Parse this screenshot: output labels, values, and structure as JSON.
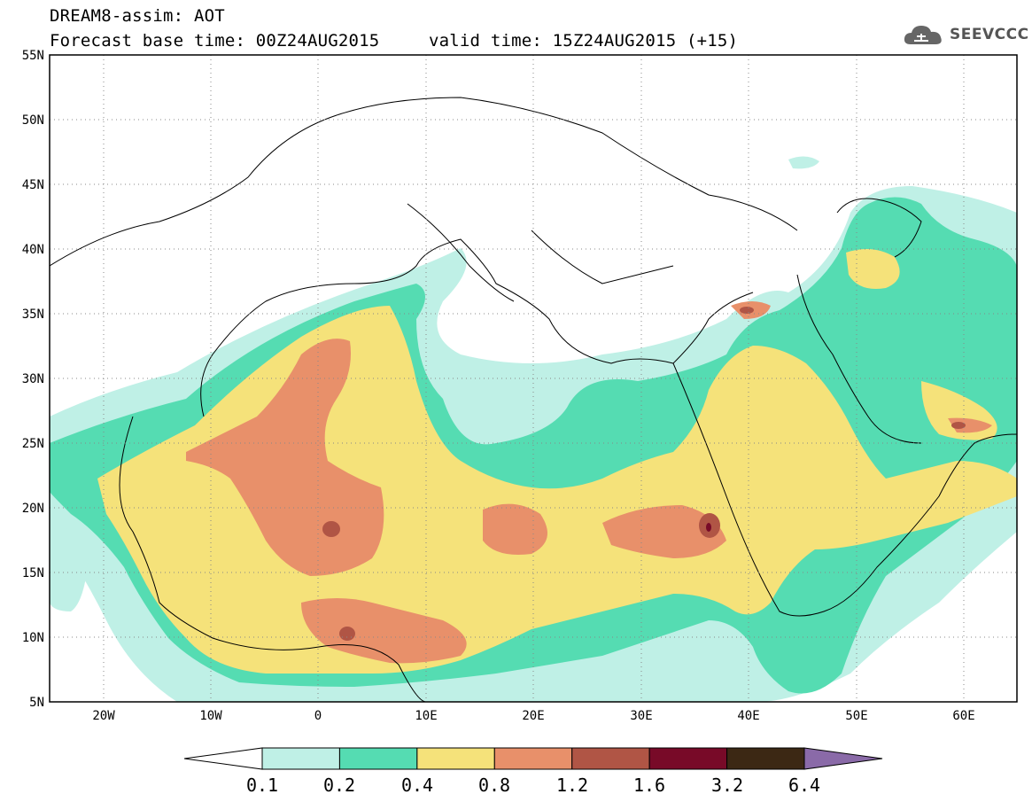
{
  "title": {
    "line1": "DREAM8-assim: AOT",
    "base_time": "Forecast base time: 00Z24AUG2015",
    "valid_time": "valid time: 15Z24AUG2015 (+15)"
  },
  "logo": {
    "text": "SEEVCCC",
    "icon": "cloud-icon",
    "color": "#555555"
  },
  "map": {
    "lon_range": [
      -25,
      65
    ],
    "lat_range": [
      5,
      55
    ],
    "lat_ticks": [
      "55N",
      "50N",
      "45N",
      "40N",
      "35N",
      "30N",
      "25N",
      "20N",
      "15N",
      "10N",
      "5N"
    ],
    "lon_ticks": [
      "20W",
      "10W",
      "0",
      "10E",
      "20E",
      "30E",
      "40E",
      "50E",
      "60E"
    ],
    "grid": "dotted"
  },
  "colorbar": {
    "levels": [
      "0.1",
      "0.2",
      "0.4",
      "0.8",
      "1.2",
      "1.6",
      "3.2",
      "6.4"
    ],
    "colors": [
      "#ffffff",
      "#bff0e6",
      "#55dcb2",
      "#f5e27a",
      "#e8906a",
      "#b05545",
      "#780a28",
      "#3c2814",
      "#8a6aa8"
    ]
  }
}
